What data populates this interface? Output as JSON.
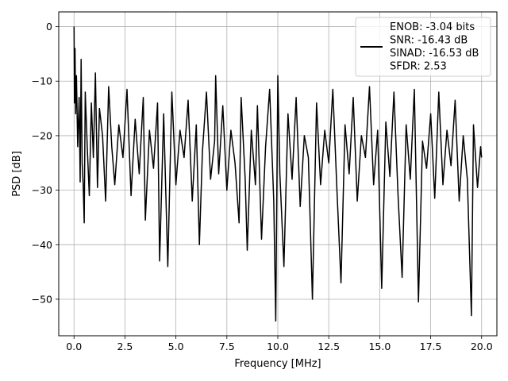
{
  "chart_data": {
    "type": "line",
    "title": "",
    "xlabel": "Frequency [MHz]",
    "ylabel": "PSD [dB]",
    "xlim": [
      -0.75,
      20.75
    ],
    "ylim": [
      -56.7,
      2.7
    ],
    "x_ticks": [
      0.0,
      2.5,
      5.0,
      7.5,
      10.0,
      12.5,
      15.0,
      17.5,
      20.0
    ],
    "x_tick_labels": [
      "0.0",
      "2.5",
      "5.0",
      "7.5",
      "10.0",
      "12.5",
      "15.0",
      "17.5",
      "20.0"
    ],
    "y_ticks": [
      0,
      -10,
      -20,
      -30,
      -40,
      -50
    ],
    "y_tick_labels": [
      "0",
      "−10",
      "−20",
      "−30",
      "−40",
      "−50"
    ],
    "grid": true,
    "legend_position": "top-right",
    "series": [
      {
        "color": "#000000",
        "description": "Noise-like PSD spectrum, peak 0 dB at 0 MHz, floor about -20 to -25 dB with dips to about -54 dB",
        "legend_lines": [
          "ENOB: -3.04 bits",
          "SNR: -16.43 dB",
          "SINAD: -16.53 dB",
          "SFDR: 2.53"
        ],
        "points": [
          [
            0.0,
            0.0
          ],
          [
            0.02,
            -14.0
          ],
          [
            0.05,
            -4.0
          ],
          [
            0.08,
            -16.0
          ],
          [
            0.12,
            -9.0
          ],
          [
            0.18,
            -22.0
          ],
          [
            0.25,
            -13.0
          ],
          [
            0.3,
            -28.5
          ],
          [
            0.35,
            -6.0
          ],
          [
            0.4,
            -25.0
          ],
          [
            0.45,
            -29.0
          ],
          [
            0.5,
            -36.0
          ],
          [
            0.55,
            -12.0
          ],
          [
            0.65,
            -22.0
          ],
          [
            0.75,
            -31.0
          ],
          [
            0.85,
            -14.0
          ],
          [
            0.95,
            -24.0
          ],
          [
            1.05,
            -8.5
          ],
          [
            1.15,
            -29.5
          ],
          [
            1.25,
            -15.0
          ],
          [
            1.4,
            -20.0
          ],
          [
            1.55,
            -32.0
          ],
          [
            1.7,
            -11.0
          ],
          [
            1.85,
            -22.0
          ],
          [
            2.0,
            -29.0
          ],
          [
            2.2,
            -18.0
          ],
          [
            2.4,
            -24.0
          ],
          [
            2.6,
            -11.5
          ],
          [
            2.8,
            -31.0
          ],
          [
            3.0,
            -17.0
          ],
          [
            3.2,
            -27.0
          ],
          [
            3.4,
            -13.0
          ],
          [
            3.5,
            -35.5
          ],
          [
            3.7,
            -19.0
          ],
          [
            3.9,
            -26.0
          ],
          [
            4.1,
            -14.0
          ],
          [
            4.2,
            -43.0
          ],
          [
            4.4,
            -16.0
          ],
          [
            4.6,
            -44.0
          ],
          [
            4.8,
            -12.0
          ],
          [
            5.0,
            -29.0
          ],
          [
            5.2,
            -19.0
          ],
          [
            5.4,
            -24.0
          ],
          [
            5.6,
            -13.5
          ],
          [
            5.8,
            -32.0
          ],
          [
            6.0,
            -18.0
          ],
          [
            6.15,
            -40.0
          ],
          [
            6.3,
            -23.0
          ],
          [
            6.5,
            -12.0
          ],
          [
            6.7,
            -28.0
          ],
          [
            6.9,
            -21.0
          ],
          [
            6.95,
            -9.0
          ],
          [
            7.1,
            -27.0
          ],
          [
            7.3,
            -14.5
          ],
          [
            7.5,
            -30.0
          ],
          [
            7.7,
            -19.0
          ],
          [
            7.9,
            -25.0
          ],
          [
            8.1,
            -36.0
          ],
          [
            8.2,
            -13.0
          ],
          [
            8.4,
            -28.0
          ],
          [
            8.5,
            -41.0
          ],
          [
            8.7,
            -19.0
          ],
          [
            8.9,
            -29.0
          ],
          [
            9.0,
            -14.5
          ],
          [
            9.2,
            -39.0
          ],
          [
            9.4,
            -22.0
          ],
          [
            9.6,
            -11.5
          ],
          [
            9.8,
            -32.0
          ],
          [
            9.9,
            -54.0
          ],
          [
            10.0,
            -9.0
          ],
          [
            10.1,
            -27.0
          ],
          [
            10.3,
            -44.0
          ],
          [
            10.5,
            -16.0
          ],
          [
            10.7,
            -28.0
          ],
          [
            10.9,
            -13.0
          ],
          [
            11.1,
            -33.0
          ],
          [
            11.3,
            -20.0
          ],
          [
            11.5,
            -24.0
          ],
          [
            11.7,
            -50.0
          ],
          [
            11.9,
            -14.0
          ],
          [
            12.1,
            -29.0
          ],
          [
            12.3,
            -19.0
          ],
          [
            12.5,
            -25.0
          ],
          [
            12.7,
            -11.5
          ],
          [
            12.9,
            -30.0
          ],
          [
            13.1,
            -47.0
          ],
          [
            13.3,
            -18.0
          ],
          [
            13.5,
            -27.0
          ],
          [
            13.7,
            -13.0
          ],
          [
            13.9,
            -32.0
          ],
          [
            14.1,
            -20.0
          ],
          [
            14.3,
            -24.0
          ],
          [
            14.5,
            -11.0
          ],
          [
            14.7,
            -29.0
          ],
          [
            14.9,
            -19.0
          ],
          [
            15.1,
            -48.0
          ],
          [
            15.3,
            -17.5
          ],
          [
            15.5,
            -27.5
          ],
          [
            15.7,
            -12.0
          ],
          [
            15.9,
            -31.0
          ],
          [
            16.1,
            -46.0
          ],
          [
            16.3,
            -18.0
          ],
          [
            16.5,
            -28.0
          ],
          [
            16.7,
            -11.5
          ],
          [
            16.9,
            -50.5
          ],
          [
            17.1,
            -21.0
          ],
          [
            17.3,
            -26.0
          ],
          [
            17.5,
            -16.0
          ],
          [
            17.7,
            -31.5
          ],
          [
            17.9,
            -12.0
          ],
          [
            18.1,
            -29.0
          ],
          [
            18.3,
            -19.0
          ],
          [
            18.5,
            -25.5
          ],
          [
            18.7,
            -13.5
          ],
          [
            18.9,
            -32.0
          ],
          [
            19.1,
            -20.0
          ],
          [
            19.3,
            -28.0
          ],
          [
            19.5,
            -53.0
          ],
          [
            19.6,
            -18.0
          ],
          [
            19.8,
            -29.5
          ],
          [
            19.95,
            -22.0
          ],
          [
            20.0,
            -24.0
          ]
        ]
      }
    ]
  }
}
